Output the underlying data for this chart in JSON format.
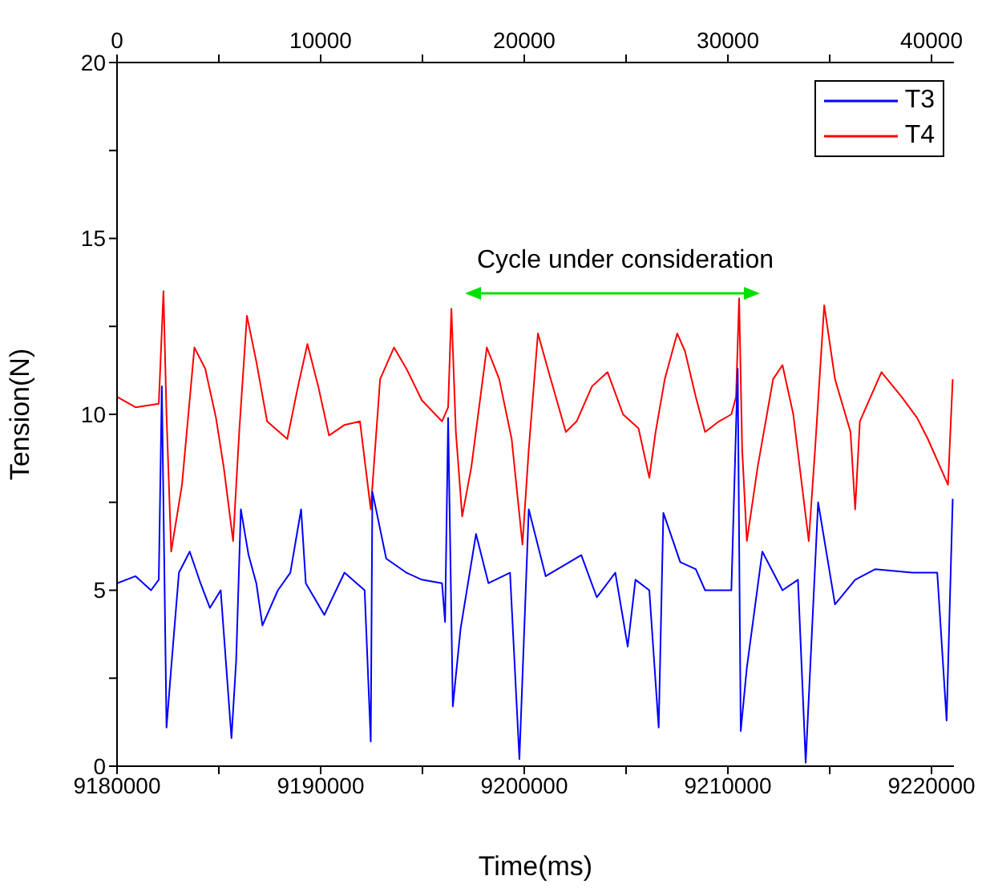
{
  "chart_data": {
    "type": "line",
    "xlabel": "Time(ms)",
    "ylabel": "Tension(N)",
    "xlim": [
      9180000,
      9221100
    ],
    "xticks": [
      9180000,
      {
        "value": 9185000,
        "label": null
      },
      9190000,
      {
        "value": 9195000,
        "label": null
      },
      9200000,
      {
        "value": 9205000,
        "label": null
      },
      9210000,
      {
        "value": 9215000,
        "label": null
      },
      9220000
    ],
    "x2lim": [
      0,
      41100
    ],
    "x2ticks": [
      0,
      {
        "value": 5000,
        "label": null
      },
      10000,
      {
        "value": 15000,
        "label": null
      },
      20000,
      {
        "value": 25000,
        "label": null
      },
      30000,
      {
        "value": 35000,
        "label": null
      },
      40000
    ],
    "ylim": [
      0,
      20
    ],
    "yticks": [
      0,
      {
        "value": 2.5,
        "label": null
      },
      5,
      {
        "value": 7.5,
        "label": null
      },
      10,
      {
        "value": 12.5,
        "label": null
      },
      15,
      {
        "value": 17.5,
        "label": null
      },
      20
    ],
    "grid": false,
    "legend": "top right",
    "marker": "none",
    "line_style": "solid",
    "annotations": [
      "Cycle under consideration"
    ],
    "series": [
      {
        "name": "T3",
        "color": "#0000ff",
        "x": [
          9180000,
          9180910,
          9181670,
          9182050,
          9182200,
          9182430,
          9182660,
          9183040,
          9183570,
          9184100,
          9184560,
          9185090,
          9185620,
          9185850,
          9186080,
          9186460,
          9186840,
          9187140,
          9187900,
          9188510,
          9189040,
          9189270,
          9190180,
          9191170,
          9192160,
          9192460,
          9192540,
          9193220,
          9194210,
          9194970,
          9195960,
          9196110,
          9196260,
          9196490,
          9196870,
          9197630,
          9198240,
          9199300,
          9199760,
          9200220,
          9201050,
          9202800,
          9203560,
          9204470,
          9205080,
          9205460,
          9206140,
          9206600,
          9206830,
          9207660,
          9208420,
          9208880,
          9210170,
          9210480,
          9210630,
          9210930,
          9211690,
          9212680,
          9213440,
          9213820,
          9214430,
          9215260,
          9216250,
          9217240,
          9219060,
          9220280,
          9220740,
          9221040
        ],
        "values": [
          5.2,
          5.4,
          5.0,
          5.3,
          10.8,
          1.1,
          2.8,
          5.5,
          6.1,
          5.2,
          4.5,
          5,
          0.8,
          3,
          7.3,
          6,
          5.2,
          4,
          5,
          5.5,
          7.3,
          5.2,
          4.3,
          5.5,
          5,
          0.7,
          7.8,
          5.9,
          5.5,
          5.3,
          5.2,
          4.1,
          9.9,
          1.7,
          3.9,
          6.6,
          5.2,
          5.5,
          0.2,
          7.3,
          5.4,
          6,
          4.8,
          5.5,
          3.4,
          5.3,
          5,
          1.1,
          7.2,
          5.8,
          5.6,
          5,
          5,
          11.3,
          1,
          2.8,
          6.1,
          5,
          5.3,
          0.1,
          7.5,
          4.6,
          5.3,
          5.6,
          5.5,
          5.5,
          1.3,
          7.6
        ]
      },
      {
        "name": "T4",
        "color": "#ff0000",
        "x": [
          9180000,
          9180910,
          9182050,
          9182280,
          9182430,
          9182660,
          9183190,
          9183800,
          9184330,
          9184860,
          9185240,
          9185700,
          9186000,
          9186380,
          9186840,
          9187370,
          9188360,
          9188890,
          9189350,
          9189880,
          9190410,
          9191170,
          9191930,
          9192460,
          9192920,
          9193600,
          9194210,
          9194970,
          9195960,
          9196260,
          9196420,
          9196640,
          9196950,
          9197400,
          9198160,
          9198770,
          9199380,
          9199910,
          9200220,
          9200670,
          9201200,
          9202040,
          9202570,
          9203330,
          9204090,
          9204850,
          9205610,
          9206140,
          9206450,
          9206900,
          9207510,
          9207890,
          9208420,
          9208880,
          9209560,
          9210170,
          9210400,
          9210550,
          9210700,
          9210930,
          9211460,
          9212220,
          9212680,
          9213210,
          9213970,
          9214280,
          9214730,
          9215260,
          9216020,
          9216250,
          9216480,
          9217540,
          9218530,
          9219290,
          9219820,
          9220810,
          9221040
        ],
        "values": [
          10.5,
          10.2,
          10.3,
          13.5,
          10,
          6.1,
          8,
          11.9,
          11.3,
          9.9,
          8.5,
          6.4,
          9.5,
          12.8,
          11.5,
          9.8,
          9.3,
          10.8,
          12,
          10.8,
          9.4,
          9.7,
          9.8,
          7.3,
          11,
          11.9,
          11.3,
          10.4,
          9.8,
          10.2,
          13,
          9.5,
          7.1,
          8.5,
          11.9,
          11,
          9.3,
          6.3,
          9,
          12.3,
          11.2,
          9.5,
          9.8,
          10.8,
          11.2,
          10,
          9.6,
          8.2,
          9.5,
          11,
          12.3,
          11.8,
          10.5,
          9.5,
          9.8,
          10,
          10.5,
          13.3,
          9,
          6.4,
          8.5,
          11,
          11.4,
          10,
          6.4,
          9,
          13.1,
          11,
          9.5,
          7.3,
          9.8,
          11.2,
          10.5,
          9.9,
          9.3,
          8,
          11
        ]
      }
    ]
  }
}
